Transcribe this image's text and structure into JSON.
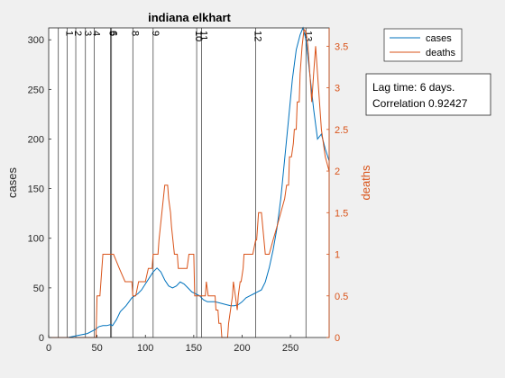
{
  "chart_data": {
    "type": "line",
    "title": "indiana elkhart",
    "xlabel": "",
    "ylabel_left": "cases",
    "ylabel_right": "deaths",
    "xlim": [
      0,
      290
    ],
    "ylim_left": [
      0,
      312
    ],
    "ylim_right": [
      0,
      3.72
    ],
    "x_ticks": [
      0,
      50,
      100,
      150,
      200,
      250
    ],
    "y_left_ticks": [
      0,
      50,
      100,
      150,
      200,
      250,
      300
    ],
    "y_right_ticks": [
      0,
      0.5,
      1,
      1.5,
      2,
      2.5,
      3,
      3.5
    ],
    "grid": false,
    "legend": {
      "position": "top-right, outside axes",
      "entries": [
        "cases",
        "deaths"
      ]
    },
    "series": [
      {
        "name": "cases",
        "axis": "left",
        "color": "#0072BD",
        "x": [
          0,
          20,
          30,
          40,
          48,
          52,
          56,
          60,
          64,
          66,
          70,
          74,
          80,
          86,
          92,
          96,
          100,
          104,
          108,
          112,
          116,
          120,
          124,
          128,
          132,
          136,
          140,
          144,
          148,
          152,
          156,
          160,
          164,
          168,
          172,
          176,
          180,
          184,
          188,
          192,
          196,
          200,
          204,
          208,
          212,
          216,
          220,
          224,
          228,
          232,
          236,
          240,
          244,
          248,
          252,
          256,
          260,
          263,
          266,
          270,
          274,
          278,
          282,
          286,
          290
        ],
        "y": [
          0,
          0,
          2,
          4,
          8,
          11,
          12,
          12,
          13,
          12,
          18,
          26,
          32,
          40,
          44,
          48,
          54,
          60,
          66,
          70,
          66,
          58,
          52,
          50,
          52,
          56,
          54,
          50,
          46,
          44,
          42,
          38,
          36,
          36,
          36,
          35,
          34,
          33,
          32,
          32,
          33,
          36,
          40,
          42,
          44,
          46,
          48,
          56,
          70,
          88,
          110,
          140,
          180,
          220,
          260,
          290,
          305,
          312,
          300,
          265,
          230,
          200,
          205,
          190,
          178
        ]
      },
      {
        "name": "deaths",
        "axis": "right",
        "color": "#D95319",
        "x": [
          0,
          49,
          50,
          53,
          56,
          59,
          60,
          62,
          64,
          66,
          67,
          73,
          79,
          83,
          86,
          87,
          90,
          93,
          100,
          103,
          104,
          107,
          108,
          110,
          113,
          114,
          117,
          120,
          123,
          124,
          126,
          127,
          130,
          133,
          134,
          137,
          140,
          143,
          145,
          147,
          150,
          151,
          154,
          157,
          160,
          162,
          163,
          165,
          166,
          169,
          170,
          172,
          173,
          175,
          176,
          178,
          179,
          181,
          182,
          183,
          185,
          186,
          188,
          190,
          191,
          193,
          195,
          196,
          198,
          199,
          201,
          202,
          205,
          206,
          208,
          210,
          211,
          214,
          215,
          217,
          220,
          224,
          228,
          232,
          236,
          240,
          244,
          246,
          248,
          249,
          251,
          253,
          254,
          256,
          257,
          259,
          260,
          262,
          264,
          266,
          268,
          270,
          272,
          274,
          276,
          278,
          280,
          282,
          286,
          290
        ],
        "y": [
          0,
          0,
          0.5,
          0.5,
          1,
          1,
          1,
          1,
          1,
          1,
          1,
          0.83,
          0.67,
          0.67,
          0.67,
          0.5,
          0.5,
          0.67,
          0.67,
          0.83,
          0.83,
          0.83,
          1,
          1,
          1,
          1.17,
          1.5,
          1.83,
          1.83,
          1.67,
          1.5,
          1.33,
          1,
          1,
          0.83,
          0.83,
          0.83,
          0.83,
          1,
          1,
          1,
          0.5,
          0.5,
          0.5,
          0.5,
          0.5,
          0.67,
          0.5,
          0.5,
          0.5,
          0.5,
          0.5,
          0.33,
          0.33,
          0.17,
          0.17,
          0,
          0,
          0,
          0,
          0,
          0.17,
          0.33,
          0.5,
          0.67,
          0.5,
          0.33,
          0.5,
          0.67,
          0.67,
          0.83,
          1,
          1,
          1,
          1,
          1,
          1,
          1.17,
          1.17,
          1.5,
          1.5,
          1,
          1,
          1.17,
          1.33,
          1.5,
          1.67,
          1.83,
          1.83,
          2.17,
          2.17,
          2.33,
          2.5,
          2.5,
          2.83,
          2.83,
          3.17,
          3.5,
          3.7,
          3.67,
          3.5,
          3.17,
          2.83,
          3.17,
          3.5,
          3.17,
          2.83,
          2.5,
          2.17,
          2
        ],
        "step": true
      }
    ],
    "vlines": [
      {
        "x": 10,
        "label": ""
      },
      {
        "x": 19,
        "label": "1"
      },
      {
        "x": 28,
        "label": "2"
      },
      {
        "x": 38,
        "label": "3"
      },
      {
        "x": 47,
        "label": "4"
      },
      {
        "x": 64,
        "label": "5"
      },
      {
        "x": 65,
        "label": "6"
      },
      {
        "x": 87,
        "label": "8"
      },
      {
        "x": 108,
        "label": "9"
      },
      {
        "x": 153,
        "label": "10"
      },
      {
        "x": 158,
        "label": "11"
      },
      {
        "x": 214,
        "label": "12"
      },
      {
        "x": 266,
        "label": "13"
      }
    ]
  },
  "legend": {
    "cases_label": "cases",
    "deaths_label": "deaths"
  },
  "annotation": {
    "line1": "Lag time: 6 days.",
    "line2": "Correlation 0.92427"
  }
}
